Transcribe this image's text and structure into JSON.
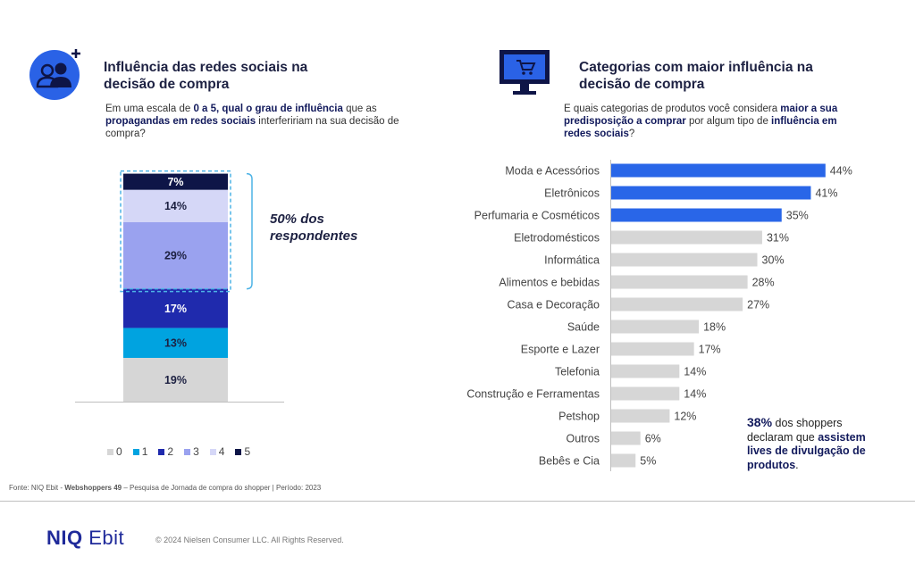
{
  "left": {
    "title_line1": "Influência das redes sociais na",
    "title_line2": "decisão de compra",
    "question_parts": [
      "Em uma escala de ",
      "0 a 5, qual o grau de influência",
      " que as ",
      "propagandas em redes sociais",
      " interfeririam na sua decisão de compra?"
    ],
    "annotation": "50% dos respondentes",
    "icon": "users-plus-icon"
  },
  "right": {
    "title_line1": "Categorias com maior influência na",
    "title_line2": "decisão de compra",
    "question_parts": [
      "E quais categorias de produtos você considera ",
      "maior a sua predisposição a comprar",
      " por algum tipo de ",
      "influência em redes sociais",
      "?"
    ],
    "icon": "monitor-cart-icon",
    "callout_parts": [
      "38%",
      " dos shoppers declaram que ",
      "assistem lives de divulgação de produtos",
      "."
    ]
  },
  "colors": {
    "s0": "#d6d6d6",
    "s1": "#00a3e0",
    "s2": "#1f2aad",
    "s3": "#9aa2ef",
    "s4": "#d5d7f7",
    "s5": "#0e1547",
    "bar_highlight": "#2966e8",
    "bar_default": "#d6d6d6",
    "bracket": "#4db3e6"
  },
  "chart_data": [
    {
      "type": "bar",
      "stacked": true,
      "categories": [
        ""
      ],
      "series": [
        {
          "name": "0",
          "values": [
            19
          ]
        },
        {
          "name": "1",
          "values": [
            13
          ]
        },
        {
          "name": "2",
          "values": [
            17
          ]
        },
        {
          "name": "3",
          "values": [
            29
          ]
        },
        {
          "name": "4",
          "values": [
            14
          ]
        },
        {
          "name": "5",
          "values": [
            7
          ]
        }
      ],
      "labels": [
        "19%",
        "13%",
        "17%",
        "29%",
        "14%",
        "7%"
      ],
      "legend_placement": "bottom",
      "grid": false
    },
    {
      "type": "bar",
      "orientation": "horizontal",
      "categories": [
        "Moda e Acessórios",
        "Eletrônicos",
        "Perfumaria e Cosméticos",
        "Eletrodomésticos",
        "Informática",
        "Alimentos e bebidas",
        "Casa e Decoração",
        "Saúde",
        "Esporte e Lazer",
        "Telefonia",
        "Construção e Ferramentas",
        "Petshop",
        "Outros",
        "Bebês e Cia"
      ],
      "values": [
        44,
        41,
        35,
        31,
        30,
        28,
        27,
        18,
        17,
        14,
        14,
        12,
        6,
        5
      ],
      "labels": [
        "44%",
        "41%",
        "35%",
        "31%",
        "30%",
        "28%",
        "27%",
        "18%",
        "17%",
        "14%",
        "14%",
        "12%",
        "6%",
        "5%"
      ],
      "highlighted": [
        0,
        1,
        2
      ],
      "xlim": [
        0,
        45
      ],
      "grid": false
    }
  ],
  "footer": {
    "source_prefix": "Fonte: NIQ Ebit - ",
    "source_bold": "Webshoppers 49",
    "source_suffix": " – Pesquisa de Jornada de compra do shopper | Período: 2023",
    "logo_a": "NIQ",
    "logo_b": " Ebit",
    "copyright": "© 2024 Nielsen Consumer LLC. All Rights Reserved."
  }
}
